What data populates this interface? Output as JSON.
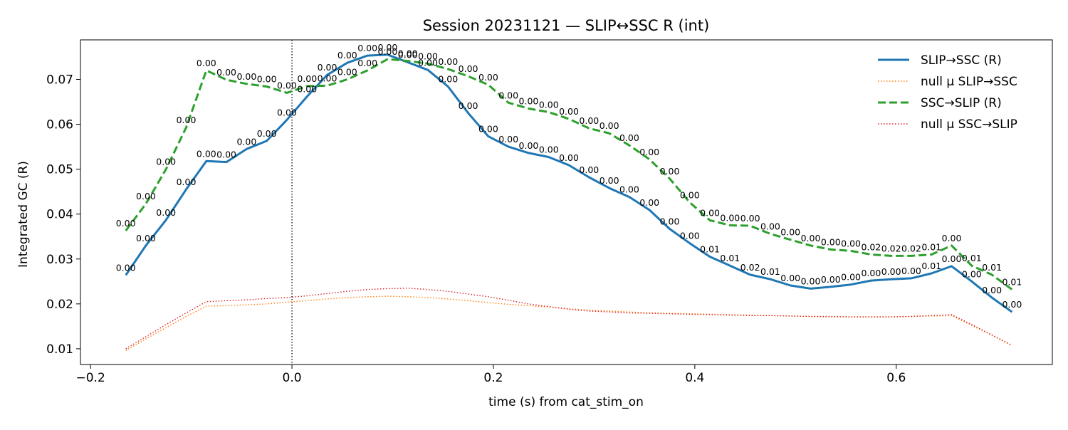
{
  "chart_data": {
    "type": "line",
    "title": "Session 20231121 — SLIP↔SSC R (int)",
    "xlabel": "time (s) from cat_stim_on",
    "ylabel": "Integrated GC (R)",
    "xlim": [
      -0.21,
      0.755
    ],
    "ylim": [
      0.0065,
      0.0788
    ],
    "x_ticks": [
      -0.2,
      0.0,
      0.2,
      0.4,
      0.6
    ],
    "x_tick_labels": [
      "−0.2",
      "0.0",
      "0.2",
      "0.4",
      "0.6"
    ],
    "y_ticks": [
      0.01,
      0.02,
      0.03,
      0.04,
      0.05,
      0.06,
      0.07
    ],
    "y_tick_labels": [
      "0.01",
      "0.02",
      "0.03",
      "0.04",
      "0.05",
      "0.06",
      "0.07"
    ],
    "vline_x": 0.0,
    "grid": false,
    "legend_position": "top-right",
    "x": [
      -0.165,
      -0.145,
      -0.125,
      -0.105,
      -0.085,
      -0.065,
      -0.045,
      -0.025,
      -0.005,
      0.015,
      0.035,
      0.055,
      0.075,
      0.095,
      0.115,
      0.135,
      0.155,
      0.175,
      0.195,
      0.215,
      0.235,
      0.255,
      0.275,
      0.295,
      0.315,
      0.335,
      0.355,
      0.375,
      0.395,
      0.415,
      0.435,
      0.455,
      0.475,
      0.495,
      0.515,
      0.535,
      0.555,
      0.575,
      0.595,
      0.615,
      0.635,
      0.655,
      0.675,
      0.695,
      0.715
    ],
    "series": [
      {
        "name": "SLIP→SSC (R)",
        "style": "solid",
        "color": "#1f77b4",
        "values": [
          0.0264,
          0.033,
          0.0387,
          0.0455,
          0.0518,
          0.0516,
          0.0545,
          0.0563,
          0.061,
          0.0662,
          0.071,
          0.0737,
          0.0753,
          0.0755,
          0.0738,
          0.0721,
          0.0684,
          0.0625,
          0.0573,
          0.055,
          0.0536,
          0.0527,
          0.0509,
          0.0482,
          0.0458,
          0.0438,
          0.0409,
          0.0367,
          0.0335,
          0.0305,
          0.0285,
          0.0265,
          0.0255,
          0.0241,
          0.0234,
          0.0238,
          0.0243,
          0.0252,
          0.0255,
          0.0257,
          0.0268,
          0.0284,
          0.025,
          0.0214,
          0.0182
        ],
        "annotations": [
          "0.00",
          "0.00",
          "0.00",
          "0.00",
          "0.00",
          "0.00",
          "0.00",
          "0.00",
          "0.00",
          "0.00",
          "0.00",
          "0.00",
          "0.00",
          "0.00",
          "0.00",
          "0.00",
          "0.00",
          "0.00",
          "0.00",
          "0.00",
          "0.00",
          "0.00",
          "0.00",
          "0.00",
          "0.00",
          "0.00",
          "0.00",
          "0.00",
          "0.00",
          "0.01",
          "0.01",
          "0.02",
          "0.01",
          "0.00",
          "0.00",
          "0.00",
          "0.00",
          "0.00",
          "0.00",
          "0.00",
          "0.01",
          "0.00",
          "0.00",
          "0.00",
          "0.00"
        ]
      },
      {
        "name": "null μ SLIP→SSC",
        "style": "dotted",
        "color": "#ff7f0e",
        "values": [
          0.0096,
          0.0122,
          0.0147,
          0.0172,
          0.0195,
          0.0196,
          0.0198,
          0.02,
          0.0204,
          0.0207,
          0.0211,
          0.0214,
          0.0216,
          0.0217,
          0.0216,
          0.0214,
          0.0211,
          0.0207,
          0.0203,
          0.0199,
          0.0196,
          0.0193,
          0.0189,
          0.0186,
          0.0184,
          0.0182,
          0.018,
          0.0179,
          0.0178,
          0.0177,
          0.0176,
          0.0175,
          0.0174,
          0.0173,
          0.0172,
          0.0171,
          0.0171,
          0.0171,
          0.0171,
          0.0172,
          0.0173,
          0.0174,
          0.0152,
          0.013,
          0.0107
        ]
      },
      {
        "name": "SSC→SLIP (R)",
        "style": "dashed",
        "color": "#2ca02c",
        "values": [
          0.0363,
          0.0423,
          0.05,
          0.0593,
          0.072,
          0.0699,
          0.069,
          0.0684,
          0.067,
          0.0685,
          0.0686,
          0.07,
          0.072,
          0.0745,
          0.0741,
          0.0735,
          0.0723,
          0.0707,
          0.0688,
          0.0648,
          0.0635,
          0.0627,
          0.0612,
          0.0591,
          0.058,
          0.0553,
          0.0522,
          0.0479,
          0.0426,
          0.0386,
          0.0375,
          0.0374,
          0.0356,
          0.0343,
          0.033,
          0.0321,
          0.0318,
          0.031,
          0.0307,
          0.0307,
          0.031,
          0.033,
          0.0285,
          0.0265,
          0.0232
        ],
        "annotations": [
          "0.00",
          "0.00",
          "0.00",
          "0.00",
          "0.00",
          "0.00",
          "0.00",
          "0.00",
          "0.00",
          "0.00",
          "0.00",
          "0.00",
          "0.00",
          "0.00",
          "0.00",
          "0.00",
          "0.00",
          "0.00",
          "0.00",
          "0.00",
          "0.00",
          "0.00",
          "0.00",
          "0.00",
          "0.00",
          "0.00",
          "0.00",
          "0.00",
          "0.00",
          "0.00",
          "0.00",
          "0.00",
          "0.00",
          "0.00",
          "0.00",
          "0.00",
          "0.00",
          "0.02",
          "0.02",
          "0.02",
          "0.01",
          "0.00",
          "0.01",
          "0.01",
          "0.01"
        ]
      },
      {
        "name": "null μ SSC→SLIP",
        "style": "dotted",
        "color": "#d62728",
        "values": [
          0.01,
          0.0127,
          0.0154,
          0.018,
          0.0205,
          0.0207,
          0.0209,
          0.0212,
          0.0214,
          0.0218,
          0.0223,
          0.0228,
          0.0232,
          0.0234,
          0.0235,
          0.0232,
          0.0228,
          0.0222,
          0.0216,
          0.0208,
          0.02,
          0.0194,
          0.0188,
          0.0184,
          0.0182,
          0.018,
          0.0179,
          0.0178,
          0.0177,
          0.0176,
          0.0175,
          0.0174,
          0.0174,
          0.0173,
          0.0172,
          0.0172,
          0.0171,
          0.0171,
          0.0171,
          0.0172,
          0.0174,
          0.0176,
          0.0154,
          0.0131,
          0.0108
        ]
      }
    ]
  }
}
